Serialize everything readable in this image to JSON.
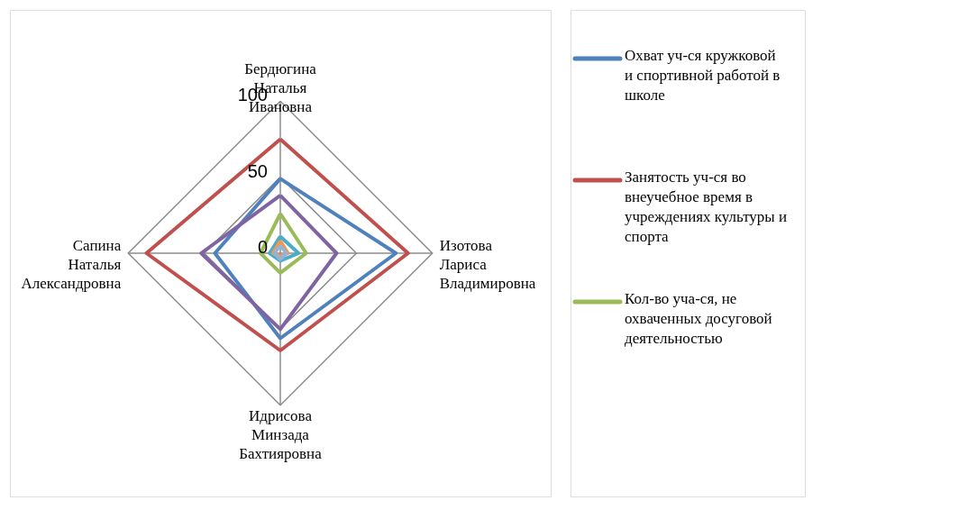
{
  "chart_data": {
    "type": "radar",
    "categories": [
      "Бердюгина Наталья Ивановна",
      "Изотова Лариса Владимировна",
      "Идрисова Минзада Бахтияровна",
      "Сапина Наталья Александровна"
    ],
    "series": [
      {
        "name": "Охват уч-ся кружковой и спортивной работой в школе",
        "color": "#4f81bd",
        "values": [
          49,
          76,
          56,
          43
        ]
      },
      {
        "name": "Занятость уч-ся во внеучебное время в учреждениях культуры и спорта",
        "color": "#c0504d",
        "values": [
          75,
          84,
          64,
          88
        ]
      },
      {
        "name": "Кол-во уча-ся, не охваченных досуговой деятельностью",
        "color": "#9bbb59",
        "values": [
          26,
          17,
          13,
          13
        ]
      },
      {
        "color": "#8064a2",
        "values": [
          38,
          37,
          50,
          52
        ]
      },
      {
        "color": "#4bacc6",
        "values": [
          11,
          12,
          5,
          7
        ]
      },
      {
        "color": "#f79646",
        "values": [
          8,
          5,
          2,
          5
        ]
      },
      {
        "color": "#95b3d7",
        "values": [
          5,
          4,
          4,
          4
        ]
      }
    ],
    "ylim": [
      0,
      100
    ],
    "yticks": [
      0,
      50,
      100
    ],
    "grid": true,
    "legend": "right",
    "line_style": "solid",
    "marker": "none"
  }
}
